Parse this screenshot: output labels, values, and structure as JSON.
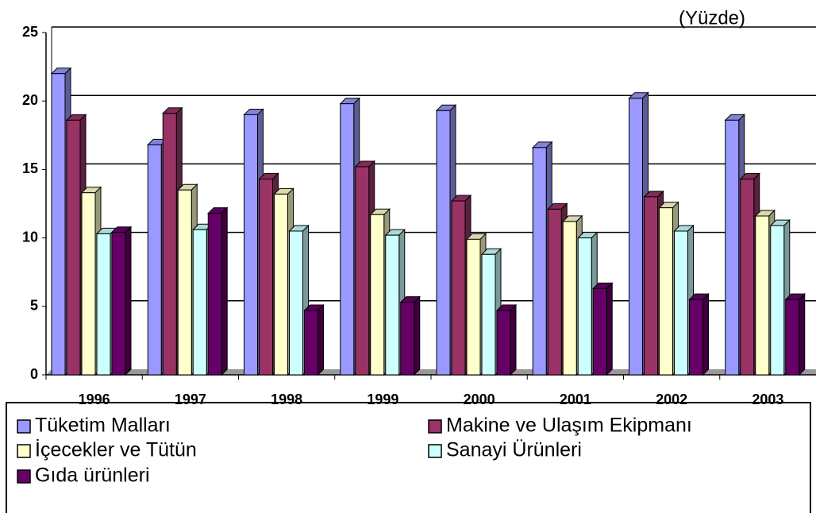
{
  "chart_data": {
    "type": "bar3d",
    "annotation": "(Yüzde)",
    "categories": [
      "1996",
      "1997",
      "1998",
      "1999",
      "2000",
      "2001",
      "2002",
      "2003"
    ],
    "series": [
      {
        "name": "Tüketim Malları",
        "color": "#9999ff",
        "values": [
          22.0,
          16.8,
          19.0,
          19.8,
          19.3,
          16.6,
          20.2,
          18.6
        ]
      },
      {
        "name": "Makine ve Ulaşım Ekipmanı",
        "color": "#993366",
        "values": [
          18.6,
          19.1,
          14.3,
          15.2,
          12.7,
          12.1,
          13.0,
          14.3
        ]
      },
      {
        "name": "İçecekler ve Tütün",
        "color": "#ffffcc",
        "values": [
          13.3,
          13.5,
          13.2,
          11.7,
          9.9,
          11.2,
          12.2,
          11.6
        ]
      },
      {
        "name": "Sanayi Ürünleri",
        "color": "#ccffff",
        "values": [
          10.3,
          10.6,
          10.5,
          10.2,
          8.8,
          10.0,
          10.5,
          10.9
        ]
      },
      {
        "name": "Gıda ürünleri",
        "color": "#660066",
        "values": [
          10.4,
          11.8,
          4.7,
          5.3,
          4.7,
          6.3,
          5.5,
          5.5
        ]
      }
    ],
    "ylim": [
      0,
      25
    ],
    "yticks": [
      0,
      5,
      10,
      15,
      20,
      25
    ],
    "grid": true,
    "legend": "bottom"
  }
}
